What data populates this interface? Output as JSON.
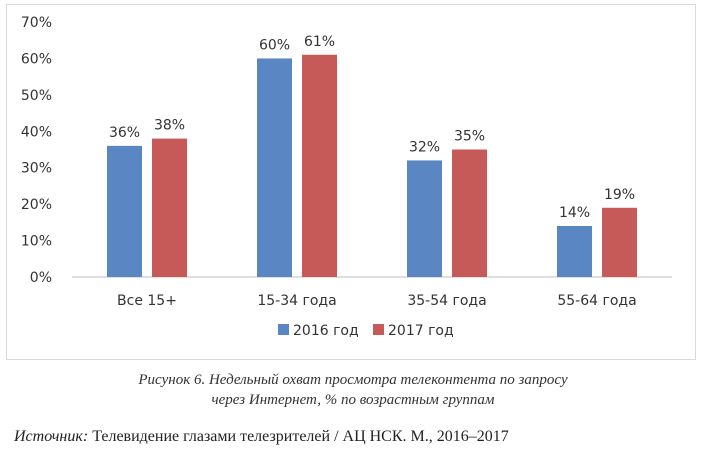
{
  "chart_data": {
    "type": "bar",
    "categories": [
      "Все 15+",
      "15-34 года",
      "35-54 года",
      "55-64 года"
    ],
    "series": [
      {
        "name": "2016 год",
        "values": [
          36,
          60,
          32,
          14
        ],
        "color": "#5b86c4",
        "labels": [
          "36%",
          "60%",
          "32%",
          "14%"
        ]
      },
      {
        "name": "2017 год",
        "values": [
          38,
          61,
          35,
          19
        ],
        "color": "#c65a58",
        "labels": [
          "38%",
          "61%",
          "35%",
          "19%"
        ]
      }
    ],
    "yticks": [
      "0%",
      "10%",
      "20%",
      "30%",
      "40%",
      "50%",
      "60%",
      "70%"
    ],
    "ylim": [
      0,
      70
    ],
    "grid": false,
    "legend_position": "bottom"
  },
  "caption": {
    "line1": "Рисунок 6. Недельный охват просмотра телеконтента по запросу",
    "line2": "через Интернет, % по возрастным группам"
  },
  "source": {
    "label": "Источник:",
    "text": " Телевидение глазами телезрителей / АЦ НСК. М., 2016–2017"
  }
}
